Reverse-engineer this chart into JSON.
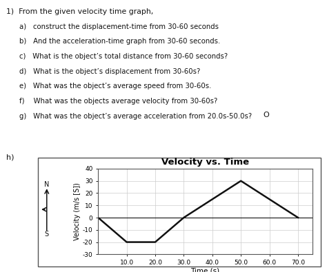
{
  "title": "Velocity vs. Time",
  "xlabel": "Time (s)",
  "ylabel": "Velocity (m/s [S])",
  "time_points": [
    0,
    10,
    20,
    30,
    50,
    70
  ],
  "velocity_points": [
    0,
    -20,
    -20,
    0,
    30,
    0
  ],
  "xlim": [
    0,
    75
  ],
  "ylim": [
    -30,
    40
  ],
  "xticks": [
    10.0,
    20.0,
    30.0,
    40.0,
    50.0,
    60.0,
    70.0
  ],
  "yticks": [
    -30,
    -20,
    -10,
    0,
    10,
    20,
    30,
    40
  ],
  "line_color": "#111111",
  "line_width": 1.8,
  "grid_color": "#cccccc",
  "bg_color": "#ffffff",
  "text_color": "#111111",
  "questions_header": "1)  From the given velocity time graph,",
  "questions": [
    "a)   construct the displacement-time from 30-60 seconds",
    "b)   And the acceleration-time graph from 30-60 seconds.",
    "c)   What is the object’s total distance from 30-60 seconds?",
    "d)   What is the object’s displacement from 30-60s?",
    "e)   What was the object’s average speed from 30-60s.",
    "f)    What was the objects average velocity from 30-60s?",
    "g)   What was the object’s average acceleration from 20.0s-50.0s?"
  ],
  "h_label": "h)",
  "figsize": [
    4.74,
    3.95
  ],
  "dpi": 100
}
